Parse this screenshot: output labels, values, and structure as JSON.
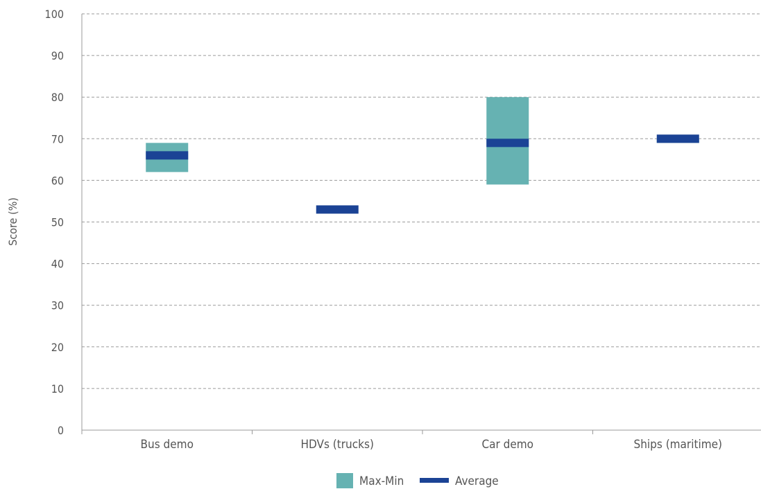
{
  "chart_data": {
    "type": "bar",
    "ylabel": "Score (%)",
    "xlabel": "",
    "ylim": [
      0,
      100
    ],
    "yticks": [
      0,
      10,
      20,
      30,
      40,
      50,
      60,
      70,
      80,
      90,
      100
    ],
    "grid": true,
    "legend_position": "bottom",
    "categories": [
      "Bus demo",
      "HDVs (trucks)",
      "Car demo",
      "Ships (maritime)"
    ],
    "series": [
      {
        "name": "Max-Min",
        "min": [
          62,
          53,
          59,
          69
        ],
        "max": [
          69,
          53,
          80,
          70
        ],
        "color": "#66b2b2"
      },
      {
        "name": "Average",
        "values": [
          66,
          53,
          69,
          70
        ],
        "color": "#1b4395"
      }
    ]
  }
}
